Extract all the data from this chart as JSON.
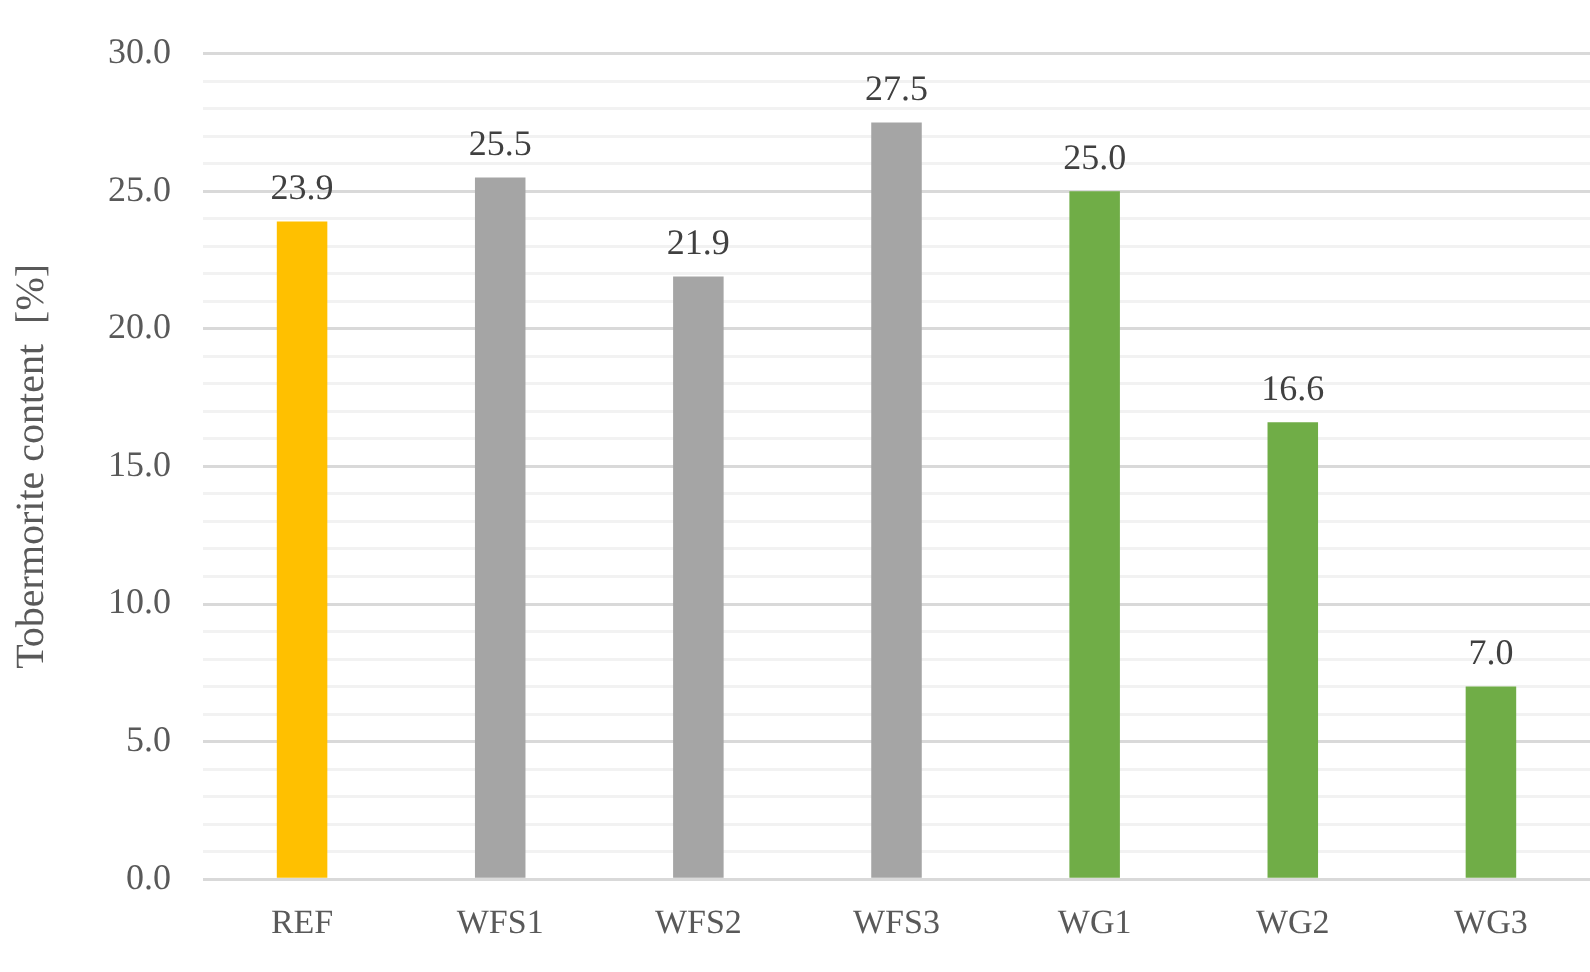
{
  "chart_data": {
    "type": "bar",
    "ylabel": "Tobermorite content  [%]",
    "categories": [
      "REF",
      "WFS1",
      "WFS2",
      "WFS3",
      "WG1",
      "WG2",
      "WG3"
    ],
    "values": [
      23.9,
      25.5,
      21.9,
      27.5,
      25,
      16.6,
      7
    ],
    "colors": [
      "#ffc000",
      "#a5a5a5",
      "#a5a5a5",
      "#a5a5a5",
      "#70ad47",
      "#70ad47",
      "#70ad47"
    ],
    "value_labels": [
      "23.9",
      "25.5",
      "21.9",
      "27.5",
      "25.0",
      "16.6",
      "7.0"
    ],
    "ylim": [
      0,
      30
    ],
    "yticks": [
      {
        "value": 0,
        "label": "0.0"
      },
      {
        "value": 1,
        "label": null
      },
      {
        "value": 2,
        "label": null
      },
      {
        "value": 3,
        "label": null
      },
      {
        "value": 4,
        "label": null
      },
      {
        "value": 5,
        "label": "5.0"
      },
      {
        "value": 6,
        "label": null
      },
      {
        "value": 7,
        "label": null
      },
      {
        "value": 8,
        "label": null
      },
      {
        "value": 9,
        "label": null
      },
      {
        "value": 10,
        "label": "10.0"
      },
      {
        "value": 11,
        "label": null
      },
      {
        "value": 12,
        "label": null
      },
      {
        "value": 13,
        "label": null
      },
      {
        "value": 14,
        "label": null
      },
      {
        "value": 15,
        "label": "15.0"
      },
      {
        "value": 16,
        "label": null
      },
      {
        "value": 17,
        "label": null
      },
      {
        "value": 18,
        "label": null
      },
      {
        "value": 19,
        "label": null
      },
      {
        "value": 20,
        "label": "20.0"
      },
      {
        "value": 21,
        "label": null
      },
      {
        "value": 22,
        "label": null
      },
      {
        "value": 23,
        "label": null
      },
      {
        "value": 24,
        "label": null
      },
      {
        "value": 25,
        "label": "25.0"
      },
      {
        "value": 26,
        "label": null
      },
      {
        "value": 27,
        "label": null
      },
      {
        "value": 28,
        "label": null
      },
      {
        "value": 29,
        "label": null
      },
      {
        "value": 30,
        "label": "30.0"
      }
    ],
    "grid": "y"
  }
}
